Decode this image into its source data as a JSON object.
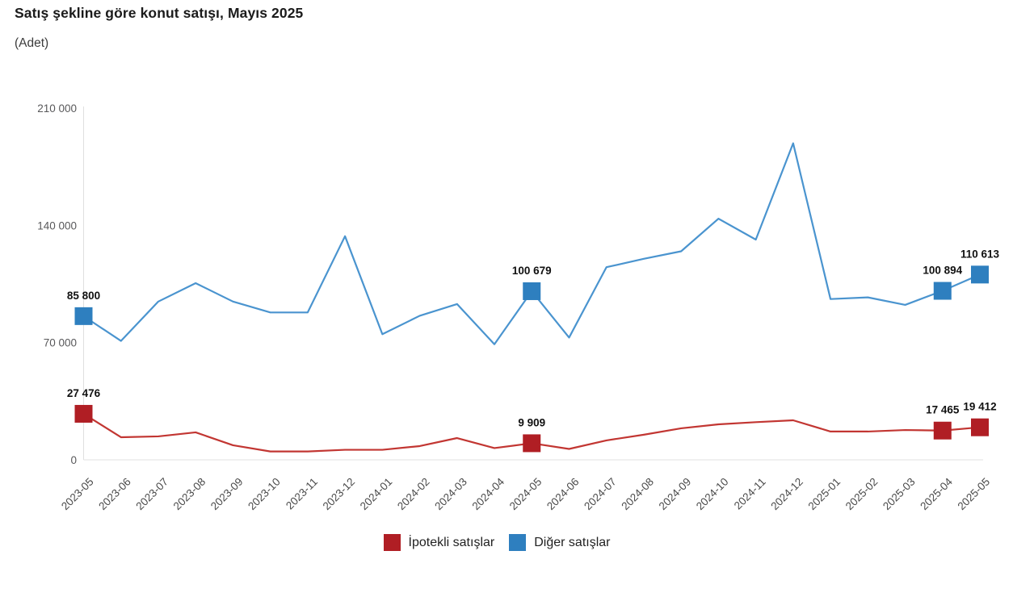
{
  "header": {
    "title": "Satış şekline göre konut satışı, Mayıs 2025",
    "subtitle": "(Adet)"
  },
  "chart_data": {
    "type": "line",
    "title": "Satış şekline göre konut satışı, Mayıs 2025",
    "unit_label": "(Adet)",
    "categories": [
      "2023-05",
      "2023-06",
      "2023-07",
      "2023-08",
      "2023-09",
      "2023-10",
      "2023-11",
      "2023-12",
      "2024-01",
      "2024-02",
      "2024-03",
      "2024-04",
      "2024-05",
      "2024-06",
      "2024-07",
      "2024-08",
      "2024-09",
      "2024-10",
      "2024-11",
      "2024-12",
      "2025-01",
      "2025-02",
      "2025-03",
      "2025-04",
      "2025-05"
    ],
    "series": [
      {
        "id": "ipotekli-satislar",
        "name": "İpotekli satışlar",
        "line_color": "#c23632",
        "marker_color": "#b01e24",
        "values": [
          27476,
          13500,
          14000,
          16400,
          8700,
          5000,
          5000,
          6000,
          6000,
          8200,
          13000,
          7000,
          9909,
          6500,
          11600,
          15000,
          18800,
          21200,
          22500,
          23600,
          16900,
          16900,
          17800,
          17465,
          19412
        ],
        "point_labels": {
          "0": "27 476",
          "12": "9 909",
          "23": "17 465",
          "24": "19 412"
        }
      },
      {
        "id": "diger-satislar",
        "name": "Diğer satışlar",
        "line_color": "#4a94cf",
        "marker_color": "#2e7fbf",
        "values": [
          85800,
          71000,
          94500,
          105500,
          94500,
          88000,
          88000,
          133500,
          75000,
          86000,
          93000,
          69000,
          100679,
          73000,
          115000,
          120000,
          124500,
          144000,
          131500,
          189000,
          96000,
          97000,
          92500,
          100894,
          110613
        ],
        "point_labels": {
          "0": "85 800",
          "12": "100 679",
          "23": "100 894",
          "24": "110 613"
        }
      }
    ],
    "ylim": [
      0,
      210000
    ],
    "y_ticks": [
      {
        "value": 0,
        "label": "0"
      },
      {
        "value": 70000,
        "label": "70 000"
      },
      {
        "value": 140000,
        "label": "140 000"
      },
      {
        "value": 210000,
        "label": "210 000"
      }
    ],
    "grid": "none",
    "legend_position": "bottom-center",
    "axis_color": "#e0e0e0"
  }
}
